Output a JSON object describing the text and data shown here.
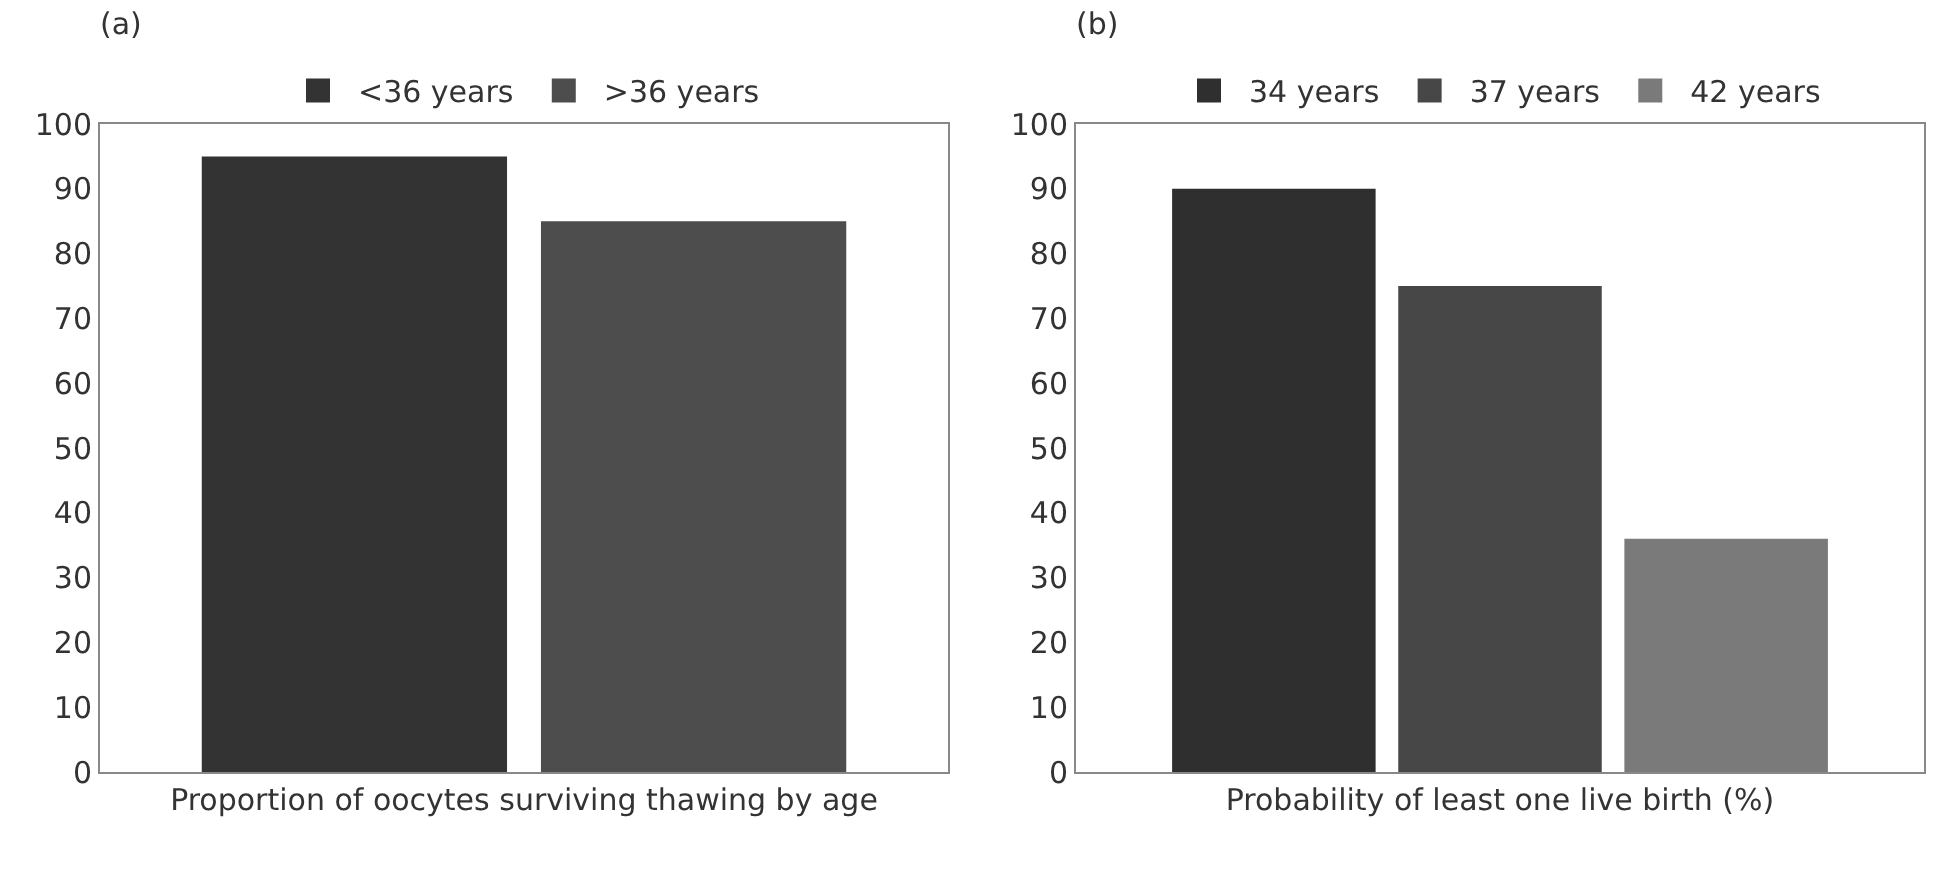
{
  "chart_data": [
    {
      "type": "bar",
      "title": "(a)",
      "xlabel": "Proportion of oocytes surviving thawing by age",
      "categories": [
        null
      ],
      "series": [
        {
          "name": "<36 years",
          "color": "#333333",
          "values": [
            95
          ]
        },
        {
          "name": ">36 years",
          "color": "#4d4d4d",
          "values": [
            85
          ]
        }
      ],
      "ylim": [
        0,
        100
      ],
      "yticks": [
        0,
        10,
        20,
        30,
        40,
        50,
        60,
        70,
        80,
        90,
        100
      ],
      "grid": false,
      "legend": "top",
      "tick_labels": "y"
    },
    {
      "type": "bar",
      "title": "(b)",
      "xlabel": "Probability of least one live birth (%)",
      "categories": [
        null
      ],
      "series": [
        {
          "name": "34 years",
          "color": "#2f2f2f",
          "values": [
            90
          ]
        },
        {
          "name": "37 years",
          "color": "#474747",
          "values": [
            75
          ]
        },
        {
          "name": "42 years",
          "color": "#7a7a7a",
          "values": [
            36
          ]
        }
      ],
      "ylim": [
        0,
        100
      ],
      "yticks": [
        0,
        10,
        20,
        30,
        40,
        50,
        60,
        70,
        80,
        90,
        100
      ],
      "grid": false,
      "legend": "top",
      "tick_labels": "y"
    }
  ]
}
